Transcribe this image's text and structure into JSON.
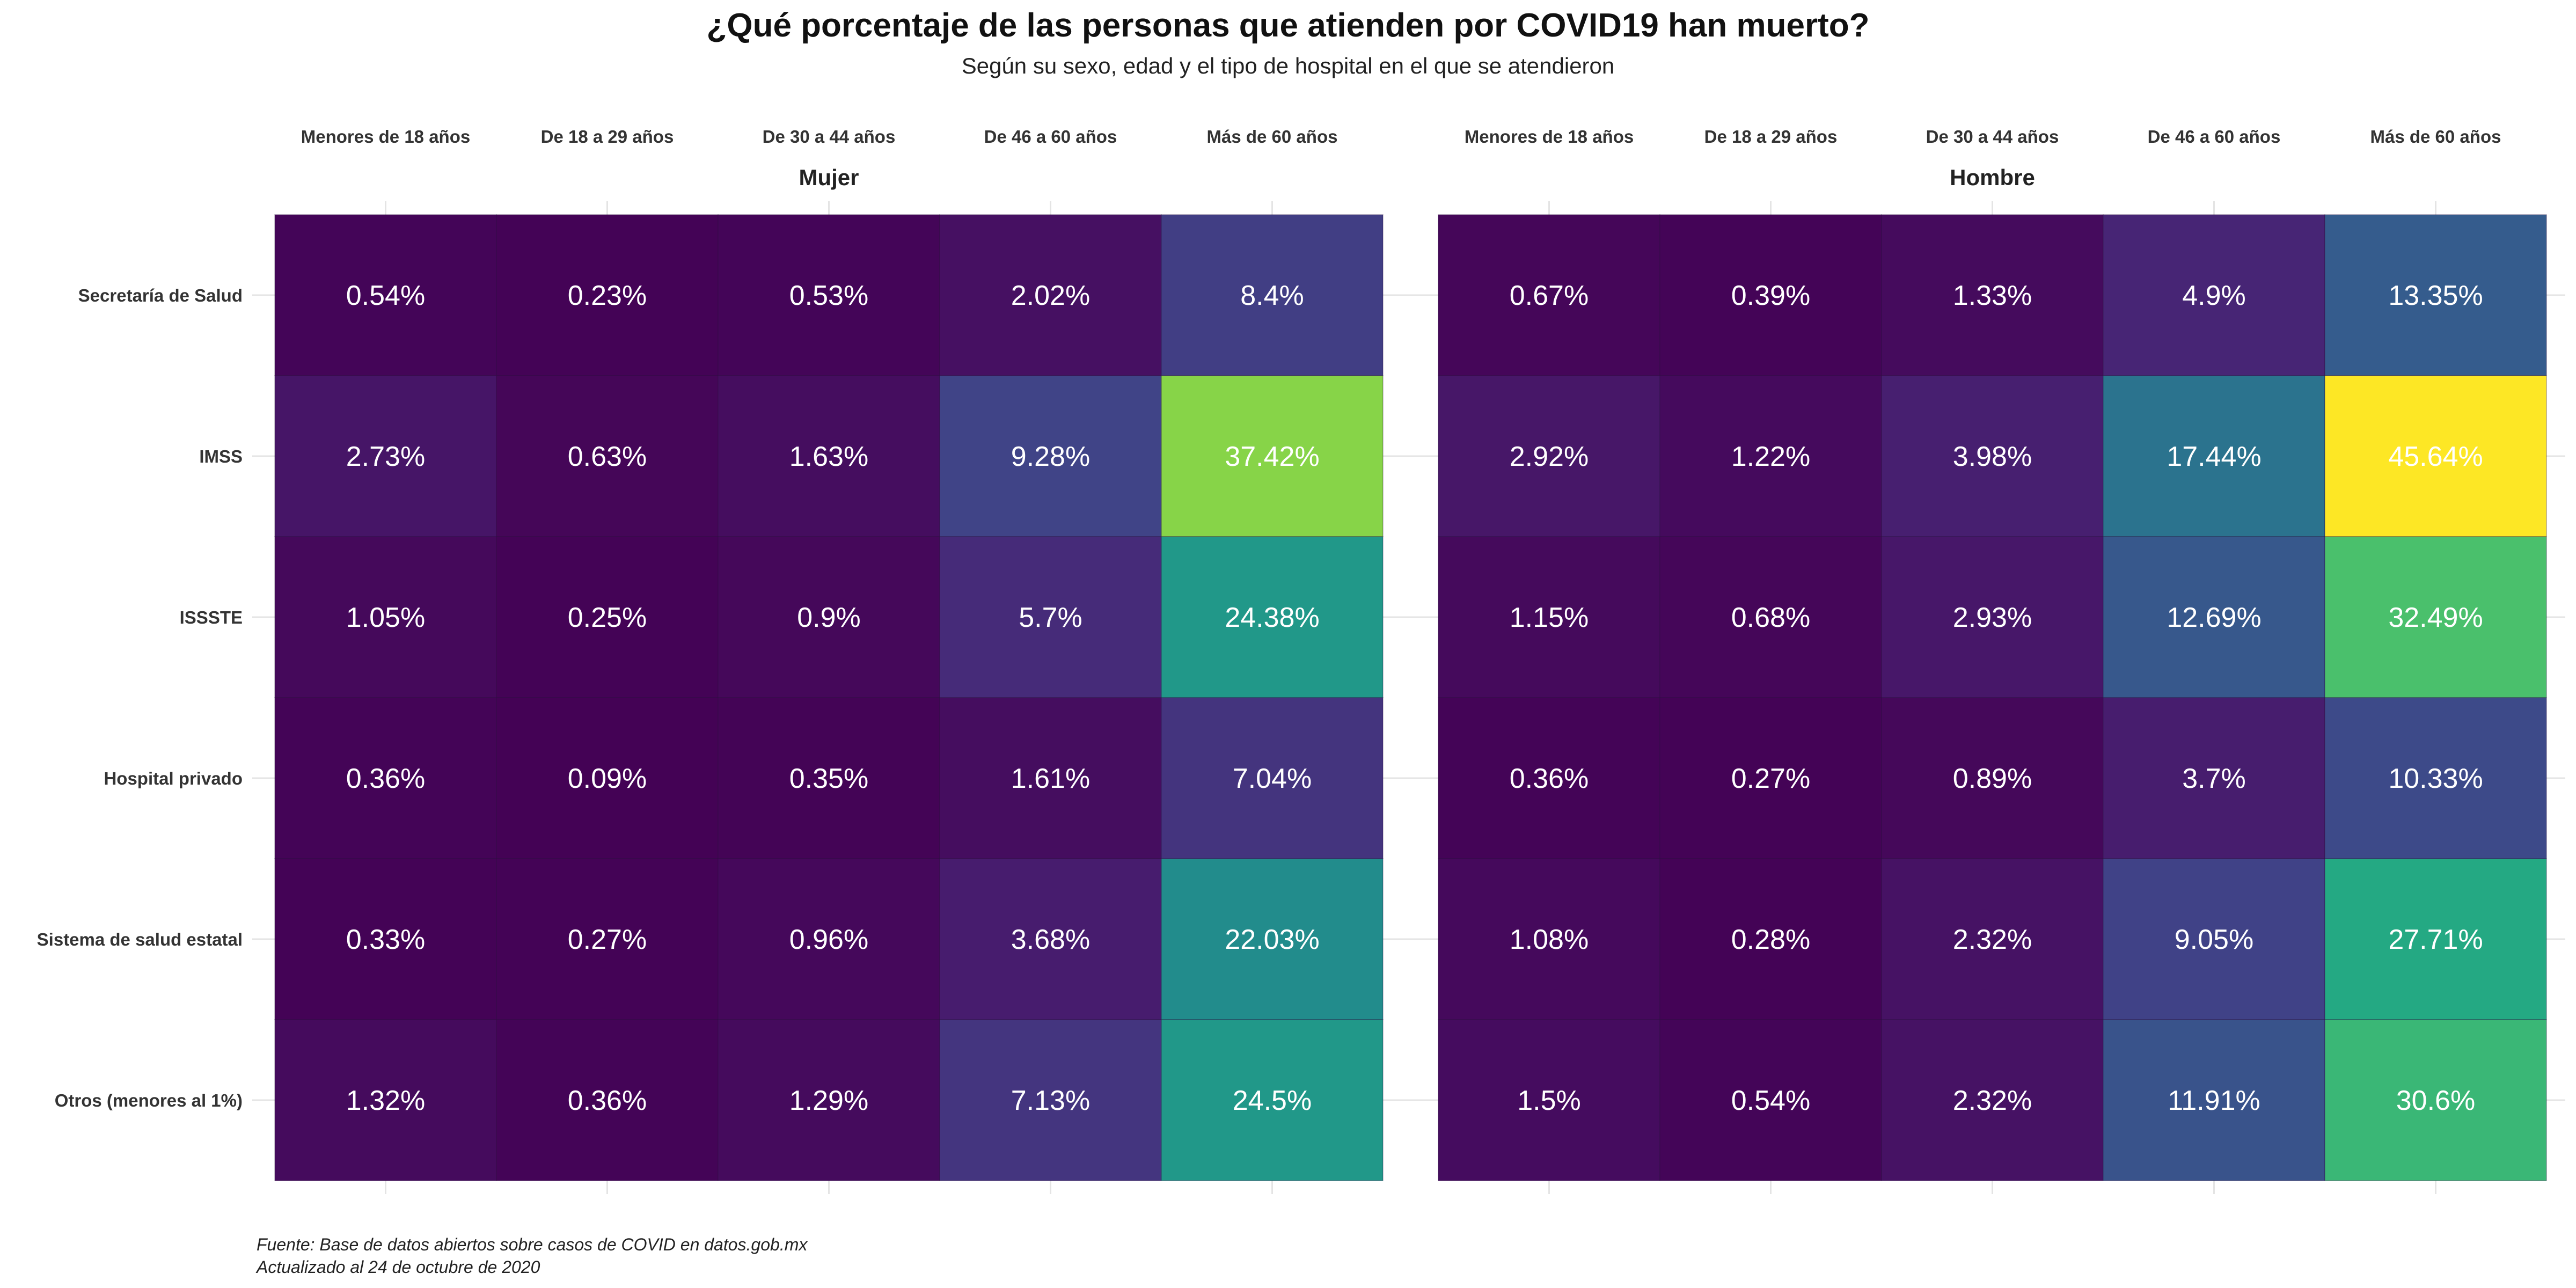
{
  "chart_data": {
    "type": "heatmap",
    "title": "¿Qué porcentaje de las personas que atienden por COVID19 han muerto?",
    "subtitle": "Según su sexo, edad y el tipo de hospital en el que se atendieron",
    "caption": [
      "Fuente: Base de datos abiertos sobre casos de COVID en datos.gob.mx",
      "Actualizado al 24 de octubre de 2020"
    ],
    "value_suffix": "%",
    "color_scale": "viridis",
    "color_range": [
      0,
      45.64
    ],
    "columns": [
      "Menores de 18 años",
      "De 18 a 29 años",
      "De 30 a 44 años",
      "De 46 a 60 años",
      "Más de 60 años"
    ],
    "rows": [
      "Secretaría de Salud",
      "IMSS",
      "ISSSTE",
      "Hospital privado",
      "Sistema de salud estatal",
      "Otros (menores al 1%)"
    ],
    "panels": [
      {
        "name": "Mujer",
        "values": [
          [
            "0.54",
            "0.23",
            "0.53",
            "2.02",
            "8.4"
          ],
          [
            "2.73",
            "0.63",
            "1.63",
            "9.28",
            "37.42"
          ],
          [
            "1.05",
            "0.25",
            "0.9",
            "5.7",
            "24.38"
          ],
          [
            "0.36",
            "0.09",
            "0.35",
            "1.61",
            "7.04"
          ],
          [
            "0.33",
            "0.27",
            "0.96",
            "3.68",
            "22.03"
          ],
          [
            "1.32",
            "0.36",
            "1.29",
            "7.13",
            "24.5"
          ]
        ]
      },
      {
        "name": "Hombre",
        "values": [
          [
            "0.67",
            "0.39",
            "1.33",
            "4.9",
            "13.35"
          ],
          [
            "2.92",
            "1.22",
            "3.98",
            "17.44",
            "45.64"
          ],
          [
            "1.15",
            "0.68",
            "2.93",
            "12.69",
            "32.49"
          ],
          [
            "0.36",
            "0.27",
            "0.89",
            "3.7",
            "10.33"
          ],
          [
            "1.08",
            "0.28",
            "2.32",
            "9.05",
            "27.71"
          ],
          [
            "1.5",
            "0.54",
            "2.32",
            "11.91",
            "30.6"
          ]
        ]
      }
    ]
  }
}
